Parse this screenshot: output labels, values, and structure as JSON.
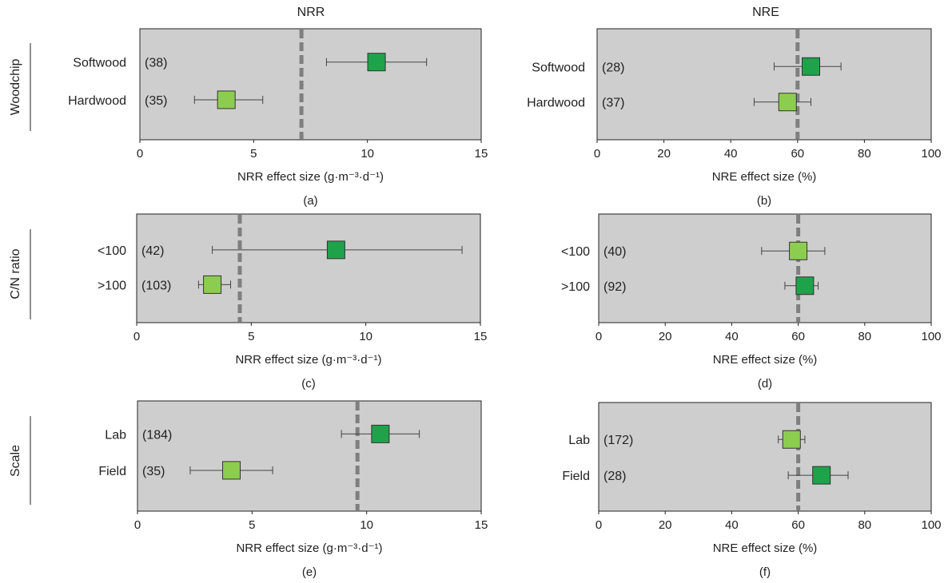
{
  "figure": {
    "column_titles": [
      "NRR",
      "NRE"
    ],
    "row_labels": [
      "Woodchip",
      "C/N ratio",
      "Scale"
    ],
    "colors": {
      "panel_bg": "#cfcecf",
      "dark_green": "#1ea24a",
      "light_green": "#8ccd4f",
      "reference_line": "#7f7f7f",
      "whisker": "#444444"
    }
  },
  "chart_data": [
    {
      "id": "a",
      "type": "scatter",
      "panel_label": "(a)",
      "xlabel": "NRR effect size (g·m⁻³·d⁻¹)",
      "xlim": [
        0,
        15
      ],
      "xticks": [
        0,
        5,
        10,
        15
      ],
      "reference_line": 7.1,
      "rows": [
        {
          "category": "Softwood",
          "n": "(38)",
          "mean": 10.4,
          "ci": [
            8.2,
            12.6
          ],
          "color": "dark"
        },
        {
          "category": "Hardwood",
          "n": "(35)",
          "mean": 3.8,
          "ci": [
            2.4,
            5.4
          ],
          "color": "light"
        }
      ]
    },
    {
      "id": "b",
      "type": "scatter",
      "panel_label": "(b)",
      "xlabel": "NRE effect size (%)",
      "xlim": [
        0,
        100
      ],
      "xticks": [
        0,
        20,
        40,
        60,
        80,
        100
      ],
      "reference_line": 60,
      "rows": [
        {
          "category": "Softwood",
          "n": "(28)",
          "mean": 64,
          "ci": [
            53,
            73
          ],
          "color": "dark"
        },
        {
          "category": "Hardwood",
          "n": "(37)",
          "mean": 57,
          "ci": [
            47,
            64
          ],
          "color": "light"
        }
      ]
    },
    {
      "id": "c",
      "type": "scatter",
      "panel_label": "(c)",
      "xlabel": "NRR effect size (g·m⁻³·d⁻¹)",
      "xlim": [
        0,
        15
      ],
      "xticks": [
        0,
        5,
        10,
        15
      ],
      "reference_line": 4.5,
      "rows": [
        {
          "category": "<100",
          "n": "(42)",
          "mean": 8.7,
          "ci": [
            3.3,
            14.2
          ],
          "color": "dark"
        },
        {
          "category": ">100",
          "n": "(103)",
          "mean": 3.3,
          "ci": [
            2.7,
            4.1
          ],
          "color": "light"
        }
      ]
    },
    {
      "id": "d",
      "type": "scatter",
      "panel_label": "(d)",
      "xlabel": "NRE effect size (%)",
      "xlim": [
        0,
        100
      ],
      "xticks": [
        0,
        20,
        40,
        60,
        80,
        100
      ],
      "reference_line": 60,
      "rows": [
        {
          "category": "<100",
          "n": "(40)",
          "mean": 60,
          "ci": [
            49,
            68
          ],
          "color": "light"
        },
        {
          "category": ">100",
          "n": "(92)",
          "mean": 62,
          "ci": [
            56,
            66
          ],
          "color": "dark"
        }
      ]
    },
    {
      "id": "e",
      "type": "scatter",
      "panel_label": "(e)",
      "xlabel": "NRR effect size (g·m⁻³·d⁻¹)",
      "xlim": [
        0,
        15
      ],
      "xticks": [
        0,
        5,
        10,
        15
      ],
      "reference_line": 9.6,
      "rows": [
        {
          "category": "Lab",
          "n": "(184)",
          "mean": 10.6,
          "ci": [
            8.9,
            12.3
          ],
          "color": "dark"
        },
        {
          "category": "Field",
          "n": "(35)",
          "mean": 4.1,
          "ci": [
            2.3,
            5.9
          ],
          "color": "light"
        }
      ]
    },
    {
      "id": "f",
      "type": "scatter",
      "panel_label": "(f)",
      "xlabel": "NRE effect size (%)",
      "xlim": [
        0,
        100
      ],
      "xticks": [
        0,
        20,
        40,
        60,
        80,
        100
      ],
      "reference_line": 60,
      "rows": [
        {
          "category": "Lab",
          "n": "(172)",
          "mean": 58,
          "ci": [
            54,
            62
          ],
          "color": "light"
        },
        {
          "category": "Field",
          "n": "(28)",
          "mean": 67,
          "ci": [
            57,
            75
          ],
          "color": "dark"
        }
      ]
    }
  ]
}
